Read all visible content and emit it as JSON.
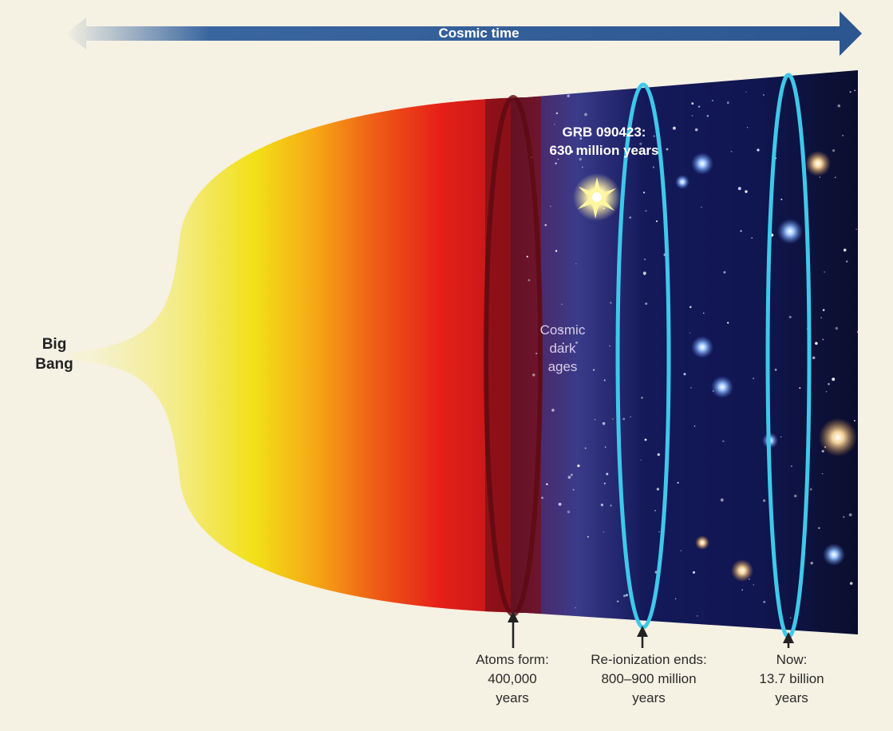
{
  "axis": {
    "label": "Cosmic time"
  },
  "origin": {
    "line1": "Big",
    "line2": "Bang"
  },
  "grb": {
    "line1": "GRB 090423:",
    "line2": "630 million years"
  },
  "dark_ages": {
    "line1": "Cosmic",
    "line2": "dark",
    "line3": "ages"
  },
  "events": [
    {
      "line1": "Atoms form:",
      "line2": "400,000",
      "line3": "years"
    },
    {
      "line1": "Re-ionization ends:",
      "line2": "800–900 million",
      "line3": "years"
    },
    {
      "line1": "Now:",
      "line2": "13.7 billion",
      "line3": "years"
    }
  ],
  "colors": {
    "background": "#f5f1e3",
    "arrow": "#2e5b95",
    "hot_yellow": "#f2e21a",
    "hot_red": "#e5201a",
    "space": "#0c1030",
    "ring": "#3fc8ea"
  }
}
